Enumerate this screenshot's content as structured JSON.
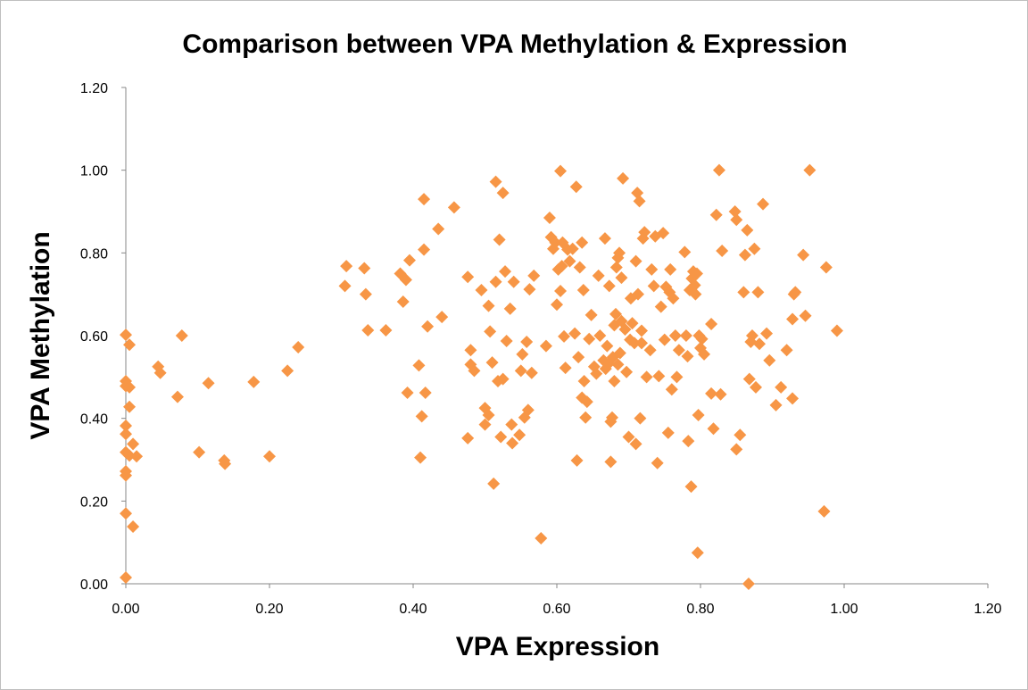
{
  "chart_data": {
    "type": "scatter",
    "title": "Comparison between VPA Methylation & Expression",
    "xlabel": "VPA Expression",
    "ylabel": "VPA Methylation",
    "xlim": [
      0,
      1.2
    ],
    "ylim": [
      0,
      1.2
    ],
    "x_ticks": [
      "0.00",
      "0.20",
      "0.40",
      "0.60",
      "0.80",
      "1.00",
      "1.20"
    ],
    "y_ticks": [
      "0.00",
      "0.20",
      "0.40",
      "0.60",
      "0.80",
      "1.00",
      "1.20"
    ],
    "grid": false,
    "legend": "none",
    "marker": "diamond",
    "marker_color": "#F79646",
    "series": [
      {
        "points": [
          [
            0.0,
            0.602
          ],
          [
            0.0,
            0.49
          ],
          [
            0.0,
            0.478
          ],
          [
            0.0,
            0.382
          ],
          [
            0.0,
            0.362
          ],
          [
            0.0,
            0.318
          ],
          [
            0.0,
            0.272
          ],
          [
            0.0,
            0.262
          ],
          [
            0.0,
            0.17
          ],
          [
            0.0,
            0.015
          ],
          [
            0.005,
            0.578
          ],
          [
            0.005,
            0.428
          ],
          [
            0.005,
            0.475
          ],
          [
            0.005,
            0.31
          ],
          [
            0.01,
            0.338
          ],
          [
            0.01,
            0.138
          ],
          [
            0.015,
            0.308
          ],
          [
            0.045,
            0.525
          ],
          [
            0.048,
            0.51
          ],
          [
            0.072,
            0.452
          ],
          [
            0.078,
            0.6
          ],
          [
            0.102,
            0.318
          ],
          [
            0.115,
            0.485
          ],
          [
            0.137,
            0.298
          ],
          [
            0.138,
            0.29
          ],
          [
            0.178,
            0.488
          ],
          [
            0.2,
            0.308
          ],
          [
            0.225,
            0.515
          ],
          [
            0.24,
            0.572
          ],
          [
            0.305,
            0.72
          ],
          [
            0.307,
            0.768
          ],
          [
            0.332,
            0.763
          ],
          [
            0.334,
            0.7
          ],
          [
            0.337,
            0.613
          ],
          [
            0.362,
            0.613
          ],
          [
            0.382,
            0.75
          ],
          [
            0.386,
            0.682
          ],
          [
            0.39,
            0.735
          ],
          [
            0.392,
            0.462
          ],
          [
            0.395,
            0.782
          ],
          [
            0.408,
            0.528
          ],
          [
            0.41,
            0.305
          ],
          [
            0.412,
            0.405
          ],
          [
            0.415,
            0.808
          ],
          [
            0.415,
            0.93
          ],
          [
            0.417,
            0.462
          ],
          [
            0.42,
            0.622
          ],
          [
            0.435,
            0.858
          ],
          [
            0.44,
            0.645
          ],
          [
            0.457,
            0.91
          ],
          [
            0.476,
            0.742
          ],
          [
            0.476,
            0.352
          ],
          [
            0.48,
            0.565
          ],
          [
            0.48,
            0.53
          ],
          [
            0.485,
            0.515
          ],
          [
            0.495,
            0.71
          ],
          [
            0.5,
            0.425
          ],
          [
            0.5,
            0.385
          ],
          [
            0.505,
            0.408
          ],
          [
            0.505,
            0.672
          ],
          [
            0.507,
            0.61
          ],
          [
            0.51,
            0.535
          ],
          [
            0.512,
            0.242
          ],
          [
            0.515,
            0.73
          ],
          [
            0.515,
            0.972
          ],
          [
            0.518,
            0.49
          ],
          [
            0.52,
            0.832
          ],
          [
            0.522,
            0.355
          ],
          [
            0.525,
            0.945
          ],
          [
            0.525,
            0.495
          ],
          [
            0.528,
            0.755
          ],
          [
            0.53,
            0.587
          ],
          [
            0.535,
            0.665
          ],
          [
            0.537,
            0.385
          ],
          [
            0.538,
            0.34
          ],
          [
            0.54,
            0.73
          ],
          [
            0.548,
            0.36
          ],
          [
            0.55,
            0.515
          ],
          [
            0.552,
            0.555
          ],
          [
            0.555,
            0.402
          ],
          [
            0.558,
            0.585
          ],
          [
            0.56,
            0.42
          ],
          [
            0.562,
            0.712
          ],
          [
            0.565,
            0.51
          ],
          [
            0.568,
            0.745
          ],
          [
            0.578,
            0.11
          ],
          [
            0.585,
            0.575
          ],
          [
            0.59,
            0.885
          ],
          [
            0.592,
            0.838
          ],
          [
            0.595,
            0.81
          ],
          [
            0.598,
            0.825
          ],
          [
            0.6,
            0.675
          ],
          [
            0.602,
            0.76
          ],
          [
            0.605,
            0.708
          ],
          [
            0.605,
            0.998
          ],
          [
            0.607,
            0.768
          ],
          [
            0.608,
            0.825
          ],
          [
            0.61,
            0.598
          ],
          [
            0.612,
            0.522
          ],
          [
            0.615,
            0.808
          ],
          [
            0.618,
            0.78
          ],
          [
            0.622,
            0.81
          ],
          [
            0.625,
            0.605
          ],
          [
            0.627,
            0.96
          ],
          [
            0.628,
            0.298
          ],
          [
            0.63,
            0.548
          ],
          [
            0.632,
            0.765
          ],
          [
            0.635,
            0.825
          ],
          [
            0.635,
            0.45
          ],
          [
            0.637,
            0.71
          ],
          [
            0.638,
            0.49
          ],
          [
            0.64,
            0.402
          ],
          [
            0.642,
            0.44
          ],
          [
            0.645,
            0.592
          ],
          [
            0.648,
            0.65
          ],
          [
            0.652,
            0.525
          ],
          [
            0.655,
            0.508
          ],
          [
            0.658,
            0.745
          ],
          [
            0.66,
            0.6
          ],
          [
            0.665,
            0.54
          ],
          [
            0.667,
            0.835
          ],
          [
            0.668,
            0.52
          ],
          [
            0.67,
            0.575
          ],
          [
            0.672,
            0.532
          ],
          [
            0.673,
            0.72
          ],
          [
            0.675,
            0.392
          ],
          [
            0.675,
            0.295
          ],
          [
            0.677,
            0.402
          ],
          [
            0.678,
            0.548
          ],
          [
            0.68,
            0.49
          ],
          [
            0.68,
            0.625
          ],
          [
            0.682,
            0.652
          ],
          [
            0.683,
            0.765
          ],
          [
            0.685,
            0.788
          ],
          [
            0.685,
            0.53
          ],
          [
            0.687,
            0.8
          ],
          [
            0.688,
            0.558
          ],
          [
            0.69,
            0.74
          ],
          [
            0.69,
            0.635
          ],
          [
            0.692,
            0.98
          ],
          [
            0.695,
            0.615
          ],
          [
            0.697,
            0.512
          ],
          [
            0.7,
            0.355
          ],
          [
            0.702,
            0.59
          ],
          [
            0.703,
            0.69
          ],
          [
            0.705,
            0.63
          ],
          [
            0.708,
            0.582
          ],
          [
            0.71,
            0.78
          ],
          [
            0.71,
            0.338
          ],
          [
            0.712,
            0.945
          ],
          [
            0.713,
            0.7
          ],
          [
            0.715,
            0.925
          ],
          [
            0.716,
            0.4
          ],
          [
            0.718,
            0.582
          ],
          [
            0.718,
            0.612
          ],
          [
            0.72,
            0.835
          ],
          [
            0.722,
            0.85
          ],
          [
            0.725,
            0.5
          ],
          [
            0.73,
            0.565
          ],
          [
            0.732,
            0.76
          ],
          [
            0.735,
            0.72
          ],
          [
            0.737,
            0.84
          ],
          [
            0.74,
            0.292
          ],
          [
            0.742,
            0.502
          ],
          [
            0.745,
            0.67
          ],
          [
            0.748,
            0.848
          ],
          [
            0.75,
            0.59
          ],
          [
            0.752,
            0.718
          ],
          [
            0.755,
            0.365
          ],
          [
            0.757,
            0.705
          ],
          [
            0.758,
            0.76
          ],
          [
            0.76,
            0.47
          ],
          [
            0.762,
            0.69
          ],
          [
            0.765,
            0.6
          ],
          [
            0.767,
            0.5
          ],
          [
            0.77,
            0.565
          ],
          [
            0.778,
            0.802
          ],
          [
            0.78,
            0.6
          ],
          [
            0.782,
            0.55
          ],
          [
            0.783,
            0.345
          ],
          [
            0.785,
            0.71
          ],
          [
            0.787,
            0.235
          ],
          [
            0.788,
            0.738
          ],
          [
            0.79,
            0.755
          ],
          [
            0.792,
            0.722
          ],
          [
            0.793,
            0.7
          ],
          [
            0.795,
            0.75
          ],
          [
            0.796,
            0.075
          ],
          [
            0.797,
            0.408
          ],
          [
            0.798,
            0.6
          ],
          [
            0.8,
            0.57
          ],
          [
            0.802,
            0.592
          ],
          [
            0.805,
            0.555
          ],
          [
            0.815,
            0.628
          ],
          [
            0.815,
            0.46
          ],
          [
            0.818,
            0.375
          ],
          [
            0.822,
            0.892
          ],
          [
            0.826,
            1.0
          ],
          [
            0.828,
            0.458
          ],
          [
            0.83,
            0.805
          ],
          [
            0.848,
            0.9
          ],
          [
            0.85,
            0.88
          ],
          [
            0.85,
            0.325
          ],
          [
            0.855,
            0.36
          ],
          [
            0.86,
            0.705
          ],
          [
            0.862,
            0.795
          ],
          [
            0.865,
            0.855
          ],
          [
            0.867,
            0.0
          ],
          [
            0.868,
            0.495
          ],
          [
            0.87,
            0.585
          ],
          [
            0.872,
            0.6
          ],
          [
            0.875,
            0.81
          ],
          [
            0.877,
            0.475
          ],
          [
            0.88,
            0.705
          ],
          [
            0.882,
            0.58
          ],
          [
            0.887,
            0.918
          ],
          [
            0.892,
            0.605
          ],
          [
            0.896,
            0.54
          ],
          [
            0.905,
            0.432
          ],
          [
            0.912,
            0.475
          ],
          [
            0.92,
            0.565
          ],
          [
            0.928,
            0.448
          ],
          [
            0.93,
            0.7
          ],
          [
            0.932,
            0.705
          ],
          [
            0.928,
            0.64
          ],
          [
            0.943,
            0.795
          ],
          [
            0.946,
            0.648
          ],
          [
            0.952,
            1.0
          ],
          [
            0.972,
            0.175
          ],
          [
            0.975,
            0.765
          ],
          [
            0.99,
            0.612
          ]
        ]
      }
    ]
  }
}
